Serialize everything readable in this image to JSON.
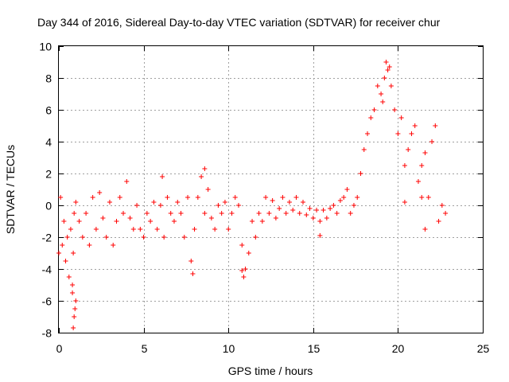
{
  "chart_data": {
    "type": "scatter",
    "title": "Day 344 of 2016, Sidereal Day-to-day VTEC variation (SDTVAR) for receiver chur",
    "xlabel": "GPS time / hours",
    "ylabel": "SDTVAR / TECUs",
    "xlim": [
      0,
      25
    ],
    "ylim": [
      -8,
      10
    ],
    "xticks": [
      0,
      5,
      10,
      15,
      20,
      25
    ],
    "yticks": [
      -8,
      -6,
      -4,
      -2,
      0,
      2,
      4,
      6,
      8,
      10
    ],
    "xtick_labels": [
      "0",
      "5",
      "10",
      "15",
      "20",
      "25"
    ],
    "ytick_labels": [
      "-8",
      "-6",
      "-4",
      "-2",
      "0",
      "2",
      "4",
      "6",
      "8",
      "10"
    ],
    "grid": true,
    "marker": "+",
    "color": "#ff0000",
    "series": [
      {
        "name": "SDTVAR",
        "x": [
          0.0,
          0.1,
          0.2,
          0.3,
          0.4,
          0.5,
          0.6,
          0.7,
          0.8,
          0.85,
          0.9,
          1.0,
          1.2,
          1.4,
          1.6,
          1.8,
          2.0,
          2.2,
          2.4,
          2.6,
          2.8,
          3.0,
          3.2,
          3.4,
          3.6,
          3.8,
          4.0,
          4.2,
          4.4,
          4.6,
          4.8,
          5.0,
          5.2,
          5.4,
          5.6,
          5.8,
          6.0,
          6.2,
          6.4,
          6.6,
          6.8,
          7.0,
          7.2,
          7.4,
          7.6,
          7.8,
          8.0,
          8.2,
          8.4,
          8.6,
          8.8,
          9.0,
          9.2,
          9.4,
          9.6,
          9.8,
          10.0,
          10.2,
          10.4,
          10.6,
          10.8,
          11.0,
          11.2,
          11.4,
          11.6,
          11.8,
          12.0,
          12.2,
          12.4,
          12.6,
          12.8,
          13.0,
          13.2,
          13.4,
          13.6,
          13.8,
          14.0,
          14.2,
          14.4,
          14.6,
          14.8,
          15.0,
          15.2,
          15.4,
          15.6,
          15.8,
          16.0,
          16.2,
          16.4,
          16.6,
          16.8,
          17.0,
          17.2,
          17.4,
          17.6,
          17.8,
          18.0,
          18.2,
          18.4,
          18.6,
          18.8,
          19.0,
          19.2,
          19.4,
          19.6,
          19.8,
          20.0,
          20.2,
          20.4,
          20.6,
          20.8,
          21.0,
          21.2,
          21.4,
          21.6,
          21.8,
          22.0,
          22.2,
          22.4,
          22.6,
          22.8,
          0.95,
          0.9,
          0.85,
          1.0,
          0.8,
          6.1,
          8.6,
          7.9,
          10.9,
          10.8,
          15.4,
          19.3,
          19.5,
          19.1,
          20.4,
          21.6,
          21.4
        ],
        "y": [
          -3.0,
          0.5,
          -2.5,
          -1.0,
          -3.5,
          -2.0,
          -4.5,
          -1.5,
          -5.0,
          -3.0,
          -0.5,
          0.2,
          -1.0,
          -2.0,
          -0.5,
          -2.5,
          0.5,
          -1.5,
          0.8,
          -0.8,
          -2.0,
          0.2,
          -2.5,
          -1.0,
          0.5,
          -0.5,
          1.5,
          -0.8,
          -1.5,
          0.0,
          -1.5,
          -2.0,
          -0.5,
          -1.0,
          0.2,
          -1.5,
          0.0,
          -2.0,
          0.5,
          -0.5,
          -1.0,
          0.2,
          -0.5,
          -2.0,
          0.5,
          -3.5,
          -1.5,
          0.5,
          1.8,
          -0.5,
          1.0,
          -0.8,
          -1.5,
          0.0,
          -0.5,
          0.2,
          -1.5,
          -0.5,
          0.5,
          0.0,
          -2.5,
          -4.0,
          -3.0,
          -1.0,
          -2.0,
          -0.5,
          -1.0,
          0.5,
          -0.5,
          0.3,
          -0.8,
          -0.2,
          0.5,
          -0.5,
          0.2,
          -0.3,
          0.5,
          -0.5,
          0.2,
          -0.6,
          -0.2,
          -0.8,
          -0.3,
          -1.0,
          -0.3,
          -0.8,
          -0.2,
          0.0,
          -0.5,
          0.3,
          0.5,
          1.0,
          -0.5,
          0.0,
          0.5,
          2.0,
          3.5,
          4.5,
          5.5,
          6.0,
          7.5,
          7.0,
          8.0,
          8.5,
          7.5,
          6.0,
          4.5,
          5.5,
          2.5,
          3.5,
          4.5,
          5.0,
          1.5,
          2.5,
          -1.5,
          0.5,
          4.0,
          5.0,
          -1.0,
          0.0,
          -0.5,
          -6.5,
          -7.0,
          -7.7,
          -6.0,
          -5.5,
          1.8,
          2.3,
          -4.3,
          -4.5,
          -4.1,
          -1.9,
          9.0,
          8.7,
          6.5,
          0.2,
          3.3,
          0.5
        ]
      }
    ]
  }
}
